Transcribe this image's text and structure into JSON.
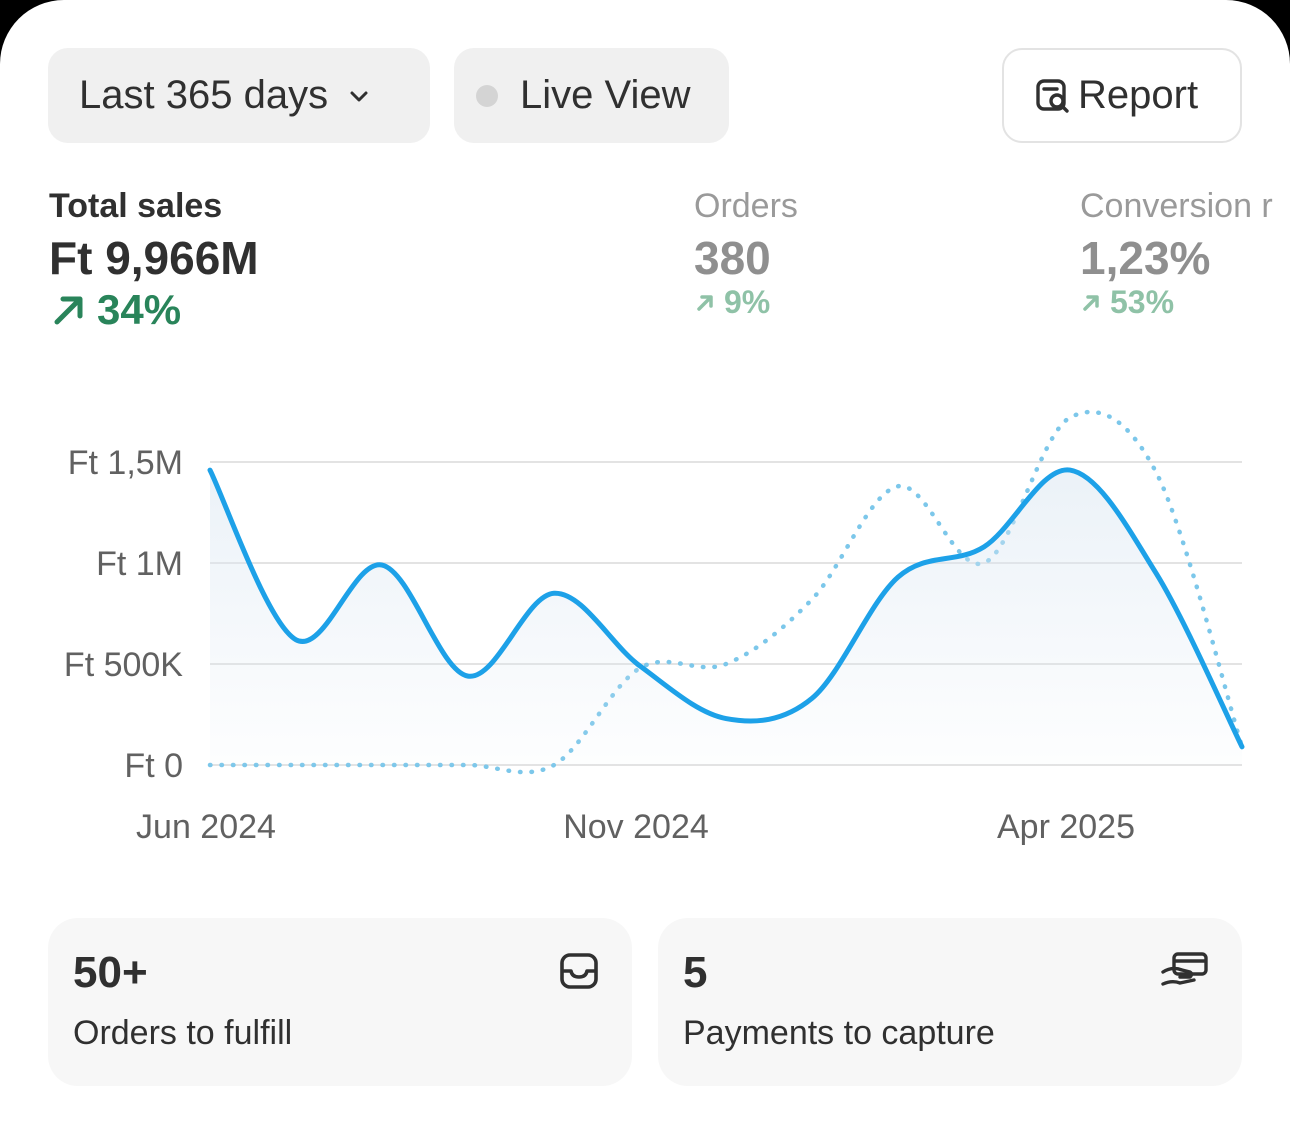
{
  "toolbar": {
    "date_range": "Last 365 days",
    "live_view": "Live View",
    "report": "Report"
  },
  "metrics": [
    {
      "label": "Total sales",
      "value": "Ft 9,966M",
      "change": "34%"
    },
    {
      "label": "Orders",
      "value": "380",
      "change": "9%"
    },
    {
      "label": "Conversion r",
      "value": "1,23%",
      "change": "53%"
    }
  ],
  "chart_data": {
    "type": "line",
    "y_ticks": [
      "Ft 0",
      "Ft 500K",
      "Ft 1M",
      "Ft 1,5M"
    ],
    "y_tick_values": [
      0,
      500000,
      1000000,
      1500000
    ],
    "ylim": [
      0,
      1500000
    ],
    "x_ticks": [
      "Jun 2024",
      "Nov 2024",
      "Apr 2025"
    ],
    "x": [
      "Jun 2024",
      "Jul 2024",
      "Aug 2024",
      "Sep 2024",
      "Oct 2024",
      "Nov 2024",
      "Dec 2024",
      "Jan 2025",
      "Feb 2025",
      "Mar 2025",
      "Apr 2025",
      "May 2025",
      "Jun 2025"
    ],
    "series": [
      {
        "style": "solid",
        "color": "#1da1e8",
        "values": [
          1460000,
          620000,
          990000,
          440000,
          850000,
          490000,
          230000,
          330000,
          930000,
          1080000,
          1460000,
          950000,
          90000
        ]
      },
      {
        "style": "dotted",
        "color": "#7cc7ea",
        "values": [
          0,
          0,
          0,
          0,
          0,
          480000,
          500000,
          820000,
          1380000,
          1000000,
          1720000,
          1450000,
          90000
        ]
      }
    ],
    "grid": true,
    "area_fill": true
  },
  "tiles": [
    {
      "count": "50+",
      "label": "Orders to fulfill"
    },
    {
      "count": "5",
      "label": "Payments to capture"
    }
  ]
}
